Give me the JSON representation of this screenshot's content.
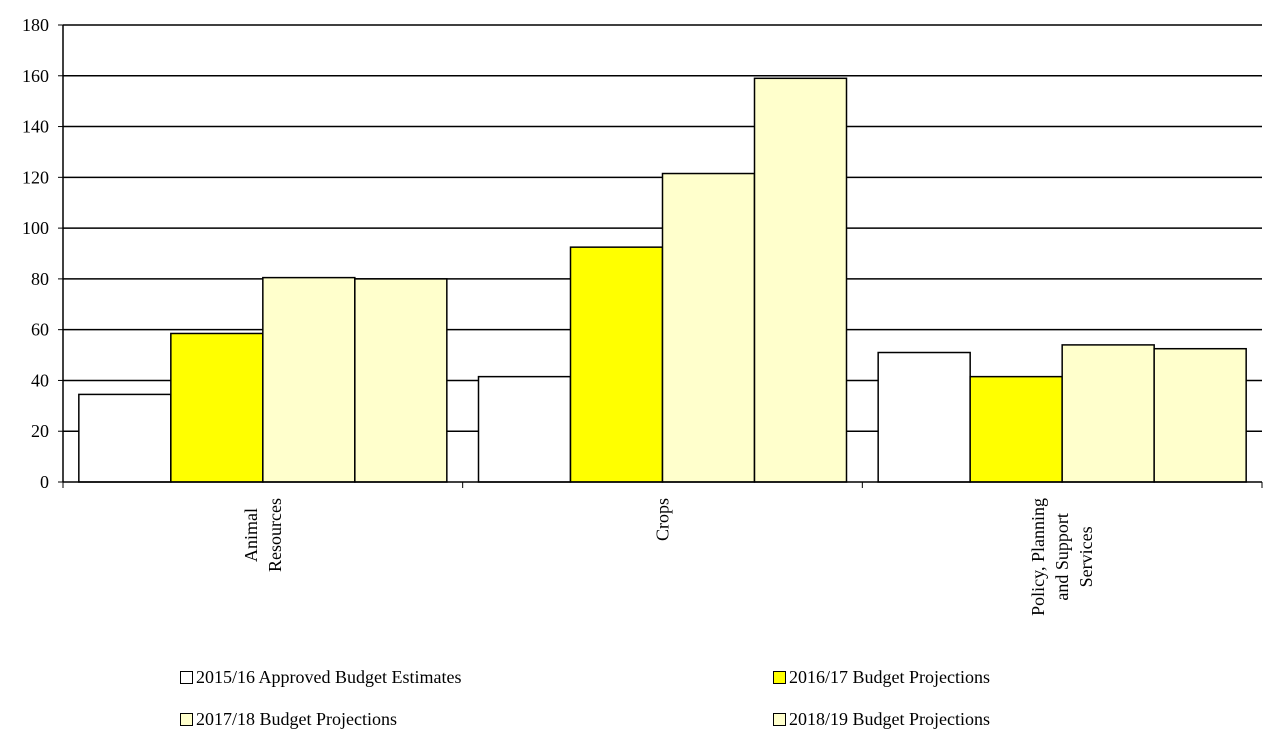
{
  "chart_data": {
    "type": "bar",
    "categories": [
      "Animal\nResources",
      "Crops",
      "Policy, Planning\nand Support\nServices"
    ],
    "series": [
      {
        "name": "2015/16 Approved Budget Estimates",
        "color": "#ffffff",
        "values": [
          34.5,
          41.5,
          51
        ]
      },
      {
        "name": "2016/17 Budget Projections",
        "color": "#ffff00",
        "values": [
          58.5,
          92.5,
          41.5
        ]
      },
      {
        "name": "2017/18 Budget Projections",
        "color": "#ffffcc",
        "values": [
          80.5,
          121.5,
          54
        ]
      },
      {
        "name": "2018/19 Budget Projections",
        "color": "#ffffcc",
        "values": [
          80,
          159,
          52.5
        ]
      }
    ],
    "ylim": [
      0,
      180
    ],
    "yticks": [
      0,
      20,
      40,
      60,
      80,
      100,
      120,
      140,
      160,
      180
    ],
    "grid": true,
    "legend_position": "bottom",
    "title": "",
    "xlabel": "",
    "ylabel": ""
  }
}
